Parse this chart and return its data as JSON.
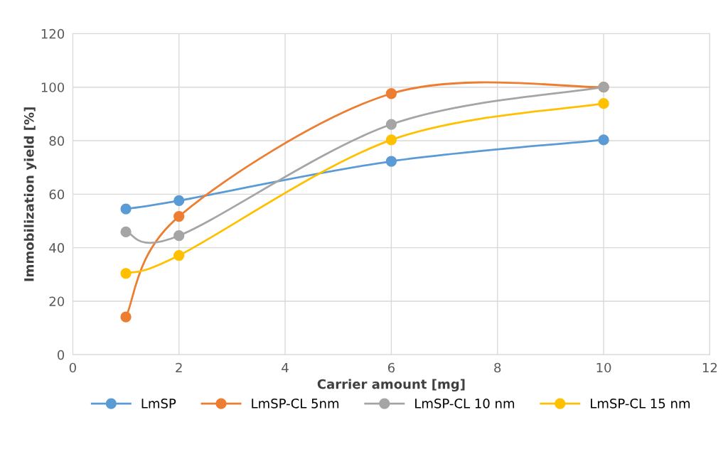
{
  "chart_data": {
    "type": "line",
    "xlabel": "Carrier amount [mg]",
    "ylabel": "Immobilization yield [%]",
    "x": [
      1,
      2,
      6,
      10
    ],
    "series": [
      {
        "name": "LmSP",
        "color": "#5b9bd5",
        "values": [
          54.5,
          57.6,
          72.3,
          80.3
        ]
      },
      {
        "name": "LmSP-CL 5nm",
        "color": "#ed7d31",
        "values": [
          14.1,
          51.7,
          97.6,
          100
        ]
      },
      {
        "name": "LmSP-CL 10 nm",
        "color": "#a5a5a5",
        "values": [
          45.9,
          44.5,
          86.1,
          100
        ]
      },
      {
        "name": "LmSP-CL 15 nm",
        "color": "#ffc000",
        "values": [
          30.4,
          37.1,
          80.3,
          93.9
        ]
      }
    ],
    "xlim": [
      0,
      12
    ],
    "xticks": [
      0,
      2,
      4,
      6,
      8,
      10,
      12
    ],
    "ylim": [
      0,
      120
    ],
    "yticks": [
      0,
      20,
      40,
      60,
      80,
      100,
      120
    ],
    "grid": true,
    "legend": "bottom",
    "marker": "circle",
    "line_style": "solid"
  }
}
